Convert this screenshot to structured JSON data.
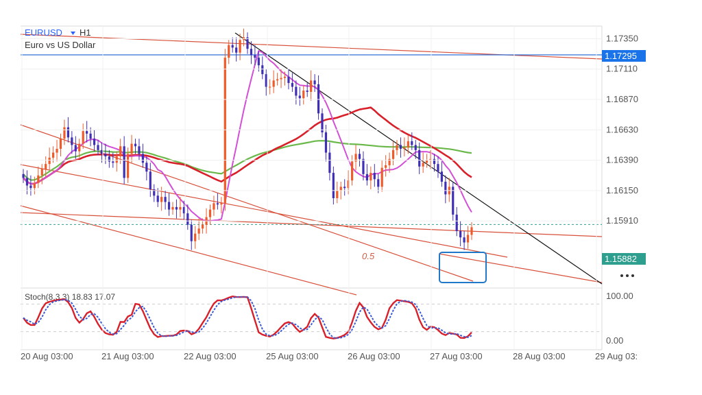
{
  "header": {
    "symbol": "EURUSD",
    "dropdown_icon": "caret-down-icon",
    "timeframe": "H1",
    "description": "Euro vs US Dollar"
  },
  "colors": {
    "bull": "#ef5a2a",
    "bear": "#3f2fb5",
    "ma_fast": "#d24fd6",
    "ma_mid": "#d8202a",
    "ma_slow": "#6bb84a",
    "channel": "#d8503a",
    "trendline": "#111111",
    "resistance": "#2f6fd8",
    "stoch_k": "#d8202a",
    "stoch_d": "#3b5bd6",
    "box": "#1f78c8",
    "price_tag": "#1a73e8",
    "last_tag": "#2e9e8f"
  },
  "chart_data": {
    "type": "candlestick",
    "symbol": "EURUSD",
    "timeframe": "H1",
    "y_range": [
      1.1538,
      1.1745
    ],
    "x_ticks": [
      "20 Aug 03:00",
      "21 Aug 03:00",
      "22 Aug 03:00",
      "25 Aug 03:00",
      "26 Aug 03:00",
      "27 Aug 03:00",
      "28 Aug 03:00",
      "29 Aug 03:"
    ],
    "y_ticks": [
      "1.17350",
      "1.17110",
      "1.16870",
      "1.16630",
      "1.16390",
      "1.16150",
      "1.15910"
    ],
    "price_tags": [
      {
        "label": "1.17295",
        "value": 1.17295
      },
      {
        "label": "1.15882",
        "value": 1.15882
      }
    ],
    "more_icon": "more-dots-icon",
    "fib_label": "0.5",
    "candles_close": [
      1.1625,
      1.1619,
      1.1617,
      1.1621,
      1.1627,
      1.1632,
      1.1636,
      1.1641,
      1.1645,
      1.1648,
      1.1656,
      1.1665,
      1.1657,
      1.1651,
      1.1646,
      1.1652,
      1.1662,
      1.166,
      1.1656,
      1.1651,
      1.1647,
      1.1644,
      1.1642,
      1.1638,
      1.1637,
      1.1642,
      1.165,
      1.1625,
      1.1644,
      1.1652,
      1.165,
      1.1644,
      1.1637,
      1.163,
      1.1616,
      1.1611,
      1.1606,
      1.161,
      1.1606,
      1.16,
      1.1602,
      1.16,
      1.1602,
      1.1597,
      1.1588,
      1.1575,
      1.1581,
      1.1585,
      1.1588,
      1.1594,
      1.16,
      1.1605,
      1.1604,
      1.1605,
      1.172,
      1.173,
      1.1728,
      1.1724,
      1.1734,
      1.1736,
      1.1727,
      1.1722,
      1.172,
      1.1714,
      1.1707,
      1.1697,
      1.1697,
      1.1702,
      1.1703,
      1.1704,
      1.1705,
      1.17,
      1.1697,
      1.169,
      1.1688,
      1.1694,
      1.1693,
      1.1702,
      1.1699,
      1.1676,
      1.1661,
      1.1645,
      1.1629,
      1.1609,
      1.1615,
      1.1618,
      1.1617,
      1.1623,
      1.1638,
      1.1644,
      1.164,
      1.1628,
      1.1623,
      1.1629,
      1.1624,
      1.1618,
      1.1633,
      1.1635,
      1.164,
      1.1647,
      1.1651,
      1.1648,
      1.1649,
      1.1654,
      1.1651,
      1.1647,
      1.1634,
      1.1637,
      1.1639,
      1.164,
      1.1636,
      1.163,
      1.1622,
      1.1612,
      1.1618,
      1.1596,
      1.1583,
      1.1578,
      1.1574,
      1.158,
      1.1586
    ],
    "stochastic": {
      "label": "Stoch(8,3,3) 18.83 17.07",
      "y_range": [
        0,
        100
      ],
      "ticks": [
        "100.00",
        "0.00"
      ],
      "k": 18.83,
      "d": 17.07
    }
  }
}
